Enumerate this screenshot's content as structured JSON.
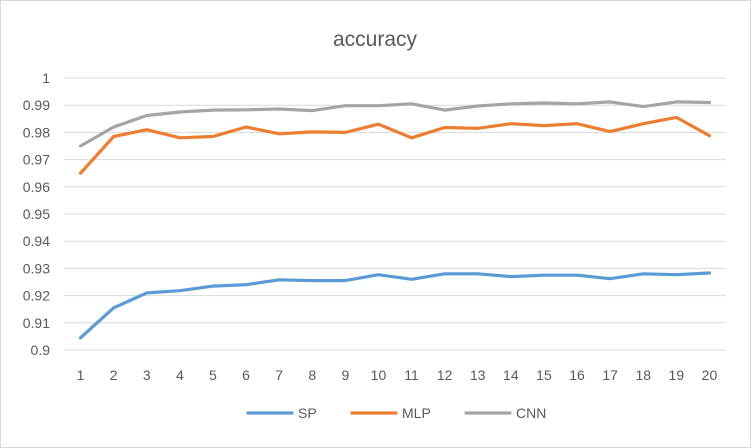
{
  "chart_data": {
    "type": "line",
    "title": "accuracy",
    "xlabel": "",
    "ylabel": "",
    "x": [
      1,
      2,
      3,
      4,
      5,
      6,
      7,
      8,
      9,
      10,
      11,
      12,
      13,
      14,
      15,
      16,
      17,
      18,
      19,
      20
    ],
    "ylim": [
      0.9,
      1
    ],
    "yticks": [
      "0.9",
      "0.91",
      "0.92",
      "0.93",
      "0.94",
      "0.95",
      "0.96",
      "0.97",
      "0.98",
      "0.99",
      "1"
    ],
    "grid": true,
    "legend": "bottom",
    "series": [
      {
        "name": "SP",
        "color": "#5b9bd5",
        "values": [
          0.9045,
          0.9155,
          0.921,
          0.9218,
          0.9235,
          0.924,
          0.9258,
          0.9255,
          0.9255,
          0.9277,
          0.926,
          0.928,
          0.928,
          0.927,
          0.9275,
          0.9275,
          0.9262,
          0.928,
          0.9277,
          0.9283
        ]
      },
      {
        "name": "MLP",
        "color": "#ed7d31",
        "values": [
          0.965,
          0.9785,
          0.981,
          0.978,
          0.9785,
          0.982,
          0.9795,
          0.9802,
          0.98,
          0.983,
          0.978,
          0.9818,
          0.9815,
          0.9832,
          0.9825,
          0.9832,
          0.9803,
          0.9832,
          0.9855,
          0.9788
        ]
      },
      {
        "name": "CNN",
        "color": "#a5a5a5",
        "values": [
          0.975,
          0.982,
          0.9862,
          0.9875,
          0.9882,
          0.9883,
          0.9886,
          0.988,
          0.9898,
          0.9898,
          0.9905,
          0.9882,
          0.9897,
          0.9905,
          0.9908,
          0.9905,
          0.9912,
          0.9895,
          0.9912,
          0.991
        ]
      }
    ]
  }
}
